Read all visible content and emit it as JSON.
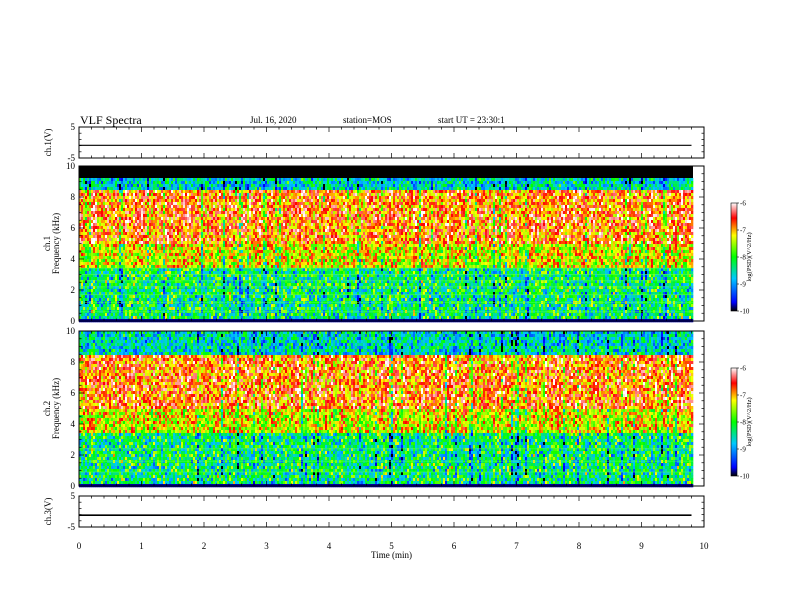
{
  "header": {
    "title": "VLF Spectra",
    "date": "Jul. 16, 2020",
    "station": "station=MOS",
    "start": "start UT = 23:30:1"
  },
  "chart_data": [
    {
      "type": "line",
      "panel": "ch1-voltage",
      "ylabel": "ch.1(V)",
      "ylim": [
        -5,
        5
      ],
      "yticks": [
        "5",
        "-5"
      ],
      "xlim": [
        0,
        10
      ],
      "series": [
        {
          "x": [
            0,
            9.8
          ],
          "values": [
            -0.9,
            -0.9
          ]
        }
      ]
    },
    {
      "type": "heatmap",
      "panel": "ch1-spectrogram",
      "ylabel": "ch.1 Frequency (kHz)",
      "ylim": [
        0,
        10
      ],
      "yticks": [
        "0",
        "2",
        "4",
        "6",
        "8",
        "10"
      ],
      "xlim": [
        0,
        10
      ],
      "colorbar": {
        "label": "log(PSD)(V^2/Hz)",
        "range": [
          -10,
          -6
        ],
        "ticks": [
          "-6",
          "-7",
          "-8",
          "-9",
          "-10"
        ]
      }
    },
    {
      "type": "heatmap",
      "panel": "ch2-spectrogram",
      "ylabel": "ch.2 Frequency (kHz)",
      "ylim": [
        0,
        10
      ],
      "yticks": [
        "0",
        "2",
        "4",
        "6",
        "8",
        "10"
      ],
      "xlim": [
        0,
        10
      ],
      "colorbar": {
        "label": "log(PSD)(V^2/Hz)",
        "range": [
          -10,
          -6
        ],
        "ticks": [
          "-6",
          "-7",
          "-8",
          "-9",
          "-10"
        ]
      }
    },
    {
      "type": "line",
      "panel": "ch3-voltage",
      "ylabel": "ch.3(V)",
      "ylim": [
        -5,
        5
      ],
      "yticks": [
        "5",
        "-5"
      ],
      "xlim": [
        0,
        10
      ],
      "series": [
        {
          "x": [
            0,
            9.8
          ],
          "values": [
            -1.2,
            -1.2
          ]
        }
      ]
    }
  ],
  "xaxis": {
    "label": "Time (min)",
    "ticks": [
      "0",
      "1",
      "2",
      "3",
      "4",
      "5",
      "6",
      "7",
      "8",
      "9",
      "10"
    ]
  }
}
